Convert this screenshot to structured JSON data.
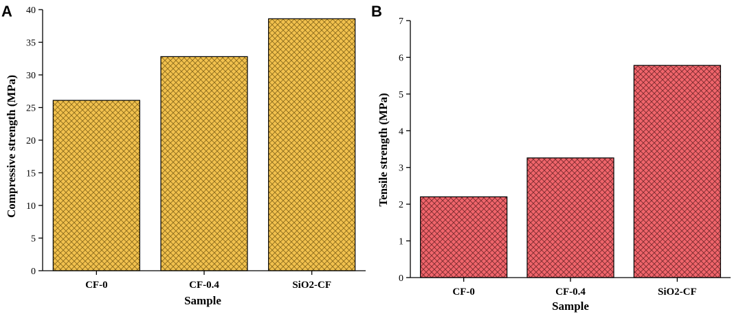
{
  "chart_data": [
    {
      "panel": "A",
      "type": "bar",
      "title": "",
      "xlabel": "Sample",
      "ylabel": "Compressive strength (MPa)",
      "categories": [
        "CF-0",
        "CF-0.4",
        "SiO2-CF"
      ],
      "values": [
        26.1,
        32.8,
        38.6
      ],
      "ylim": [
        0,
        40
      ],
      "yticks": [
        0,
        5,
        10,
        15,
        20,
        25,
        30,
        35,
        40
      ],
      "bar_color": "#F2C14E",
      "hatch_color": "#8a6a1c",
      "grid": false
    },
    {
      "panel": "B",
      "type": "bar",
      "title": "",
      "xlabel": "Sample",
      "ylabel": "Tensile strength (MPa)",
      "categories": [
        "CF-0",
        "CF-0.4",
        "SiO2-CF"
      ],
      "values": [
        2.2,
        3.26,
        5.78
      ],
      "ylim": [
        0,
        7
      ],
      "yticks": [
        0,
        1,
        2,
        3,
        4,
        5,
        6,
        7
      ],
      "bar_color": "#F0656B",
      "hatch_color": "#7a2a2e",
      "grid": false
    }
  ]
}
